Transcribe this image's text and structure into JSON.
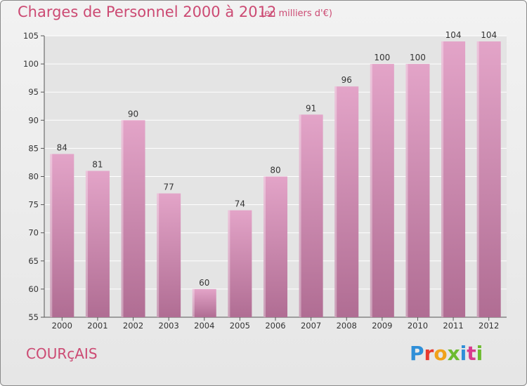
{
  "header": {
    "title": "Charges de Personnel 2000 à 2012",
    "subtitle": "(en milliers d'€)"
  },
  "commune": "COURçAIS",
  "logo": {
    "text": "Proxiti"
  },
  "colors": {
    "accent": "#cc4a73",
    "bar_top": "#e3a4c8",
    "bar_bottom": "#b06d93",
    "plot_bg": "#e4e4e4",
    "grid": "#ffffff"
  },
  "chart_data": {
    "type": "bar",
    "title": "Charges de Personnel 2000 à 2012",
    "subtitle": "(en milliers d'€)",
    "xlabel": "",
    "ylabel": "",
    "categories": [
      "2000",
      "2001",
      "2002",
      "2003",
      "2004",
      "2005",
      "2006",
      "2007",
      "2008",
      "2009",
      "2010",
      "2011",
      "2012"
    ],
    "values": [
      84,
      81,
      90,
      77,
      60,
      74,
      80,
      91,
      96,
      100,
      100,
      104,
      104
    ],
    "ylim": [
      55,
      105
    ],
    "yticks": [
      55,
      60,
      65,
      70,
      75,
      80,
      85,
      90,
      95,
      100,
      105
    ],
    "grid": true,
    "data_labels": true
  }
}
